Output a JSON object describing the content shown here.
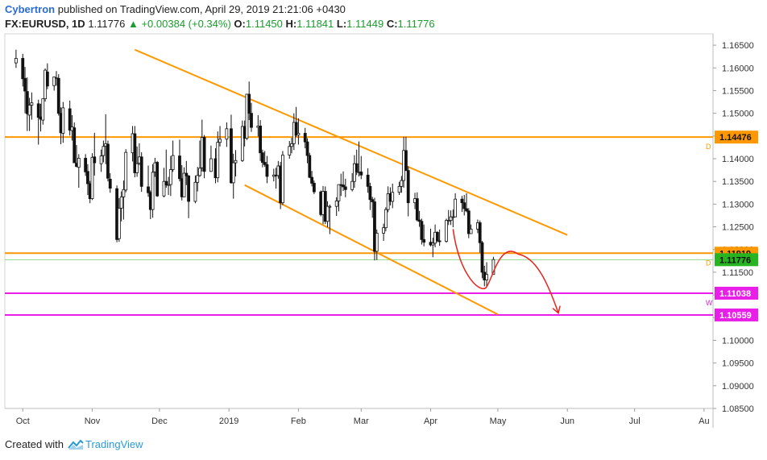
{
  "header": {
    "author": "Cybertron",
    "published": "published on TradingView.com, April 29, 2019 21:21:06 +0430",
    "symbol": "FX:EURUSD, 1D",
    "last": "1.11776",
    "change": "+0.00384 (+0.34%)",
    "o_label": "O:",
    "o_val": "1.11450",
    "h_label": "H:",
    "h_val": "1.11841",
    "l_label": "L:",
    "l_val": "1.11449",
    "c_label": "C:",
    "c_val": "1.11776"
  },
  "footer": {
    "created": "Created with",
    "brand": "TradingView"
  },
  "colors": {
    "orange": "#ff9800",
    "magenta": "#e91ee8",
    "red": "#e8241c",
    "green": "#26b520",
    "candle": "#111111"
  },
  "chart_data": {
    "type": "candlestick",
    "symbol": "EURUSD",
    "timeframe": "1D",
    "xlabels": [
      "Oct",
      "Nov",
      "Dec",
      "2019",
      "Feb",
      "Mar",
      "Apr",
      "May",
      "Jun",
      "Jul",
      "Au"
    ],
    "ylim": [
      1.085,
      1.1675
    ],
    "yticks": [
      "1.16500",
      "1.16000",
      "1.15500",
      "1.15000",
      "1.14500",
      "1.14000",
      "1.13500",
      "1.13000",
      "1.12500",
      "1.12000",
      "1.11500",
      "1.11000",
      "1.10500",
      "1.10000",
      "1.09500",
      "1.09000",
      "1.08500"
    ],
    "price_labels": [
      {
        "label": "1.14476",
        "value": 1.14476,
        "color": "#ff9800",
        "marker": "D"
      },
      {
        "label": "1.11919",
        "value": 1.11919,
        "color": "#ff9800",
        "marker": "D"
      },
      {
        "label": "1.11776",
        "value": 1.11776,
        "color": "#26b520",
        "marker": ""
      },
      {
        "label": "1.11038",
        "value": 1.11038,
        "color": "#e91ee8",
        "marker": "W"
      },
      {
        "label": "1.10559",
        "value": 1.10559,
        "color": "#e91ee8",
        "marker": ""
      }
    ],
    "horizontal_levels": [
      {
        "value": 1.14476,
        "color": "#ff9800"
      },
      {
        "value": 1.11919,
        "color": "#ff9800"
      },
      {
        "value": 1.11776,
        "color": "#26b520"
      },
      {
        "value": 1.11038,
        "color": "#e91ee8"
      },
      {
        "value": 1.10559,
        "color": "#e91ee8"
      }
    ],
    "trendlines": [
      {
        "start": "2018-11-20",
        "end": "2019-06-01",
        "y1": 1.164,
        "y2": 1.1232,
        "color": "#ff9800"
      },
      {
        "start": "2019-01-08",
        "end": "2019-05-01",
        "y1": 1.1342,
        "y2": 1.1057,
        "color": "#ff9800"
      }
    ],
    "projection": {
      "color": "#e8241c",
      "points": [
        [
          "2019-04-11",
          1.1245
        ],
        [
          "2019-04-26",
          1.1118
        ],
        [
          "2019-05-10",
          1.119
        ],
        [
          "2019-05-28",
          1.106
        ]
      ]
    },
    "candles": [
      [
        "2018-09-28",
        1.1611,
        1.164,
        1.16,
        1.1621
      ],
      [
        "2018-10-01",
        1.1621,
        1.1631,
        1.1559,
        1.1576
      ],
      [
        "2018-10-02",
        1.1577,
        1.1602,
        1.15,
        1.1549
      ],
      [
        "2018-10-03",
        1.1548,
        1.1579,
        1.1461,
        1.1499
      ],
      [
        "2018-10-04",
        1.1496,
        1.1534,
        1.1461,
        1.1518
      ],
      [
        "2018-10-05",
        1.1518,
        1.1546,
        1.1486,
        1.1523
      ],
      [
        "2018-10-08",
        1.1521,
        1.153,
        1.1431,
        1.1491
      ],
      [
        "2018-10-09",
        1.1492,
        1.1521,
        1.146,
        1.1487
      ],
      [
        "2018-10-10",
        1.1485,
        1.1532,
        1.1475,
        1.1532
      ],
      [
        "2018-10-11",
        1.1532,
        1.1599,
        1.1526,
        1.1595
      ],
      [
        "2018-10-12",
        1.1591,
        1.161,
        1.1553,
        1.156
      ],
      [
        "2018-10-15",
        1.1561,
        1.1581,
        1.155,
        1.158
      ],
      [
        "2018-10-16",
        1.1578,
        1.1593,
        1.1561,
        1.1578
      ],
      [
        "2018-10-17",
        1.1577,
        1.1586,
        1.1495,
        1.15
      ],
      [
        "2018-10-18",
        1.15,
        1.1513,
        1.1432,
        1.1457
      ],
      [
        "2018-10-19",
        1.1456,
        1.1525,
        1.1435,
        1.1512
      ],
      [
        "2018-10-22",
        1.151,
        1.1528,
        1.1451,
        1.1463
      ],
      [
        "2018-10-23",
        1.1462,
        1.1496,
        1.144,
        1.147
      ],
      [
        "2018-10-24",
        1.1468,
        1.148,
        1.1391,
        1.1391
      ],
      [
        "2018-10-25",
        1.139,
        1.143,
        1.1381,
        1.1383
      ],
      [
        "2018-10-26",
        1.1381,
        1.141,
        1.1336,
        1.1401
      ],
      [
        "2018-10-29",
        1.1401,
        1.141,
        1.1362,
        1.1371
      ],
      [
        "2018-10-30",
        1.1372,
        1.1388,
        1.132,
        1.1345
      ],
      [
        "2018-10-31",
        1.1345,
        1.1351,
        1.1302,
        1.1312
      ],
      [
        "2018-11-01",
        1.1312,
        1.1412,
        1.1309,
        1.1403
      ],
      [
        "2018-11-02",
        1.1404,
        1.1457,
        1.1363,
        1.1391
      ],
      [
        "2018-11-05",
        1.1389,
        1.142,
        1.1371,
        1.1406
      ],
      [
        "2018-11-06",
        1.1407,
        1.144,
        1.1392,
        1.1427
      ],
      [
        "2018-11-07",
        1.1428,
        1.1498,
        1.1388,
        1.1433
      ],
      [
        "2018-11-08",
        1.1432,
        1.144,
        1.135,
        1.1357
      ],
      [
        "2018-11-09",
        1.1355,
        1.1368,
        1.1325,
        1.1335
      ],
      [
        "2018-11-12",
        1.1334,
        1.1341,
        1.1216,
        1.1222
      ],
      [
        "2018-11-13",
        1.1224,
        1.1313,
        1.1217,
        1.1291
      ],
      [
        "2018-11-14",
        1.1291,
        1.1328,
        1.1262,
        1.1316
      ],
      [
        "2018-11-15",
        1.1316,
        1.1352,
        1.1266,
        1.1332
      ],
      [
        "2018-11-16",
        1.1331,
        1.1421,
        1.1326,
        1.1414
      ],
      [
        "2018-11-19",
        1.1413,
        1.1472,
        1.1394,
        1.1455
      ],
      [
        "2018-11-20",
        1.1455,
        1.1472,
        1.1359,
        1.1369
      ],
      [
        "2018-11-21",
        1.1369,
        1.1427,
        1.136,
        1.1389
      ],
      [
        "2018-11-22",
        1.139,
        1.1434,
        1.1386,
        1.1404
      ],
      [
        "2018-11-23",
        1.1404,
        1.1414,
        1.1327,
        1.1339
      ],
      [
        "2018-11-26",
        1.1338,
        1.1385,
        1.1316,
        1.1325
      ],
      [
        "2018-11-27",
        1.1326,
        1.133,
        1.1267,
        1.1288
      ],
      [
        "2018-11-28",
        1.1288,
        1.1388,
        1.127,
        1.137
      ],
      [
        "2018-11-29",
        1.1371,
        1.1402,
        1.136,
        1.1391
      ],
      [
        "2018-11-30",
        1.1392,
        1.1395,
        1.1316,
        1.1318
      ],
      [
        "2018-12-03",
        1.1318,
        1.138,
        1.1315,
        1.135
      ],
      [
        "2018-12-04",
        1.135,
        1.142,
        1.1336,
        1.1342
      ],
      [
        "2018-12-05",
        1.1343,
        1.136,
        1.132,
        1.1343
      ],
      [
        "2018-12-06",
        1.1343,
        1.1406,
        1.1318,
        1.1376
      ],
      [
        "2018-12-07",
        1.1376,
        1.144,
        1.1371,
        1.1407
      ],
      [
        "2018-12-10",
        1.1406,
        1.1442,
        1.135,
        1.1356
      ],
      [
        "2018-12-11",
        1.1356,
        1.1386,
        1.1308,
        1.1316
      ],
      [
        "2018-12-12",
        1.1316,
        1.1381,
        1.1316,
        1.1368
      ],
      [
        "2018-12-13",
        1.1368,
        1.1395,
        1.1342,
        1.1362
      ],
      [
        "2018-12-14",
        1.1362,
        1.1364,
        1.1269,
        1.1306
      ],
      [
        "2018-12-17",
        1.1306,
        1.1363,
        1.1302,
        1.1348
      ],
      [
        "2018-12-18",
        1.1348,
        1.1382,
        1.1328,
        1.1363
      ],
      [
        "2018-12-19",
        1.1363,
        1.144,
        1.136,
        1.1379
      ],
      [
        "2018-12-20",
        1.138,
        1.1486,
        1.1372,
        1.1447
      ],
      [
        "2018-12-21",
        1.1447,
        1.1452,
        1.1357,
        1.1372
      ],
      [
        "2018-12-24",
        1.1372,
        1.1429,
        1.1371,
        1.14
      ],
      [
        "2018-12-26",
        1.14,
        1.1423,
        1.1346,
        1.1358
      ],
      [
        "2018-12-27",
        1.1358,
        1.146,
        1.1348,
        1.1436
      ],
      [
        "2018-12-28",
        1.1436,
        1.1472,
        1.1427,
        1.1443
      ],
      [
        "2018-12-31",
        1.1443,
        1.148,
        1.1426,
        1.1466
      ],
      [
        "2019-01-02",
        1.1466,
        1.1497,
        1.1345,
        1.1347
      ],
      [
        "2019-01-03",
        1.1347,
        1.1411,
        1.1312,
        1.1391
      ],
      [
        "2019-01-04",
        1.1391,
        1.1419,
        1.1361,
        1.1396
      ],
      [
        "2019-01-07",
        1.1396,
        1.1484,
        1.1393,
        1.1471
      ],
      [
        "2019-01-08",
        1.1471,
        1.1484,
        1.1427,
        1.1445
      ],
      [
        "2019-01-09",
        1.1445,
        1.1543,
        1.1441,
        1.1542
      ],
      [
        "2019-01-10",
        1.1542,
        1.157,
        1.1485,
        1.15
      ],
      [
        "2019-01-11",
        1.15,
        1.1523,
        1.1459,
        1.1469
      ],
      [
        "2019-01-14",
        1.1469,
        1.1496,
        1.1449,
        1.1472
      ],
      [
        "2019-01-15",
        1.1472,
        1.1485,
        1.1395,
        1.1413
      ],
      [
        "2019-01-16",
        1.1413,
        1.142,
        1.1381,
        1.1392
      ],
      [
        "2019-01-17",
        1.1392,
        1.1417,
        1.1382,
        1.1387
      ],
      [
        "2019-01-18",
        1.1387,
        1.1406,
        1.1346,
        1.1361
      ],
      [
        "2019-01-21",
        1.1361,
        1.1378,
        1.135,
        1.1364
      ],
      [
        "2019-01-22",
        1.1364,
        1.138,
        1.1334,
        1.1363
      ],
      [
        "2019-01-23",
        1.1363,
        1.1395,
        1.1356,
        1.1384
      ],
      [
        "2019-01-24",
        1.1384,
        1.1393,
        1.1289,
        1.1303
      ],
      [
        "2019-01-25",
        1.1303,
        1.1417,
        1.1298,
        1.1408
      ],
      [
        "2019-01-28",
        1.1408,
        1.1439,
        1.14,
        1.1427
      ],
      [
        "2019-01-29",
        1.1427,
        1.1446,
        1.1412,
        1.1433
      ],
      [
        "2019-01-30",
        1.1433,
        1.15,
        1.1419,
        1.148
      ],
      [
        "2019-01-31",
        1.148,
        1.1514,
        1.1448,
        1.1452
      ],
      [
        "2019-02-01",
        1.1452,
        1.1489,
        1.1431,
        1.1456
      ],
      [
        "2019-02-04",
        1.1456,
        1.1468,
        1.1423,
        1.1437
      ],
      [
        "2019-02-05",
        1.1437,
        1.1445,
        1.139,
        1.1407
      ],
      [
        "2019-02-06",
        1.1407,
        1.1413,
        1.1357,
        1.1359
      ],
      [
        "2019-02-07",
        1.1359,
        1.1373,
        1.1339,
        1.1346
      ],
      [
        "2019-02-08",
        1.1346,
        1.1352,
        1.1322,
        1.1327
      ],
      [
        "2019-02-11",
        1.1327,
        1.133,
        1.1273,
        1.1277
      ],
      [
        "2019-02-12",
        1.1277,
        1.134,
        1.1256,
        1.1328
      ],
      [
        "2019-02-13",
        1.1328,
        1.1339,
        1.1256,
        1.1262
      ],
      [
        "2019-02-14",
        1.1262,
        1.1306,
        1.1249,
        1.1295
      ],
      [
        "2019-02-15",
        1.1295,
        1.1299,
        1.1234,
        1.1295
      ],
      [
        "2019-02-18",
        1.1295,
        1.1315,
        1.1274,
        1.1307
      ],
      [
        "2019-02-19",
        1.1307,
        1.1339,
        1.1284,
        1.1343
      ],
      [
        "2019-02-20",
        1.1343,
        1.1367,
        1.1318,
        1.1342
      ],
      [
        "2019-02-21",
        1.1342,
        1.1372,
        1.1329,
        1.1338
      ],
      [
        "2019-02-22",
        1.1338,
        1.1356,
        1.1315,
        1.1332
      ],
      [
        "2019-02-25",
        1.1332,
        1.1368,
        1.1328,
        1.135
      ],
      [
        "2019-02-26",
        1.135,
        1.1408,
        1.1336,
        1.1389
      ],
      [
        "2019-02-27",
        1.1389,
        1.142,
        1.1364,
        1.1371
      ],
      [
        "2019-02-28",
        1.1371,
        1.1438,
        1.1361,
        1.1371
      ],
      [
        "2019-03-01",
        1.1371,
        1.1406,
        1.1355,
        1.1364
      ],
      [
        "2019-03-04",
        1.1364,
        1.1379,
        1.1325,
        1.1339
      ],
      [
        "2019-03-05",
        1.1339,
        1.1347,
        1.1287,
        1.131
      ],
      [
        "2019-03-06",
        1.131,
        1.1316,
        1.127,
        1.1305
      ],
      [
        "2019-03-07",
        1.1305,
        1.1314,
        1.1176,
        1.1196
      ],
      [
        "2019-03-08",
        1.1196,
        1.1244,
        1.1177,
        1.1236
      ],
      [
        "2019-03-11",
        1.1236,
        1.1257,
        1.1219,
        1.1248
      ],
      [
        "2019-03-12",
        1.1248,
        1.1293,
        1.124,
        1.1288
      ],
      [
        "2019-03-13",
        1.1288,
        1.1339,
        1.1282,
        1.1323
      ],
      [
        "2019-03-14",
        1.1323,
        1.1337,
        1.1297,
        1.1306
      ],
      [
        "2019-03-15",
        1.1306,
        1.1345,
        1.1291,
        1.1326
      ],
      [
        "2019-03-18",
        1.1326,
        1.1349,
        1.132,
        1.1339
      ],
      [
        "2019-03-19",
        1.1339,
        1.1362,
        1.1325,
        1.1352
      ],
      [
        "2019-03-20",
        1.1352,
        1.1448,
        1.1336,
        1.1418
      ],
      [
        "2019-03-21",
        1.1418,
        1.1448,
        1.1373,
        1.1374
      ],
      [
        "2019-03-22",
        1.1374,
        1.1383,
        1.1273,
        1.1303
      ],
      [
        "2019-03-25",
        1.1303,
        1.1325,
        1.1289,
        1.1312
      ],
      [
        "2019-03-26",
        1.1312,
        1.1326,
        1.1262,
        1.1265
      ],
      [
        "2019-03-27",
        1.1265,
        1.1285,
        1.125,
        1.1262
      ],
      [
        "2019-03-28",
        1.1262,
        1.1268,
        1.1211,
        1.1222
      ],
      [
        "2019-03-29",
        1.1222,
        1.1255,
        1.1207,
        1.1216
      ],
      [
        "2019-04-01",
        1.1216,
        1.1246,
        1.1207,
        1.121
      ],
      [
        "2019-04-02",
        1.121,
        1.1226,
        1.1183,
        1.1214
      ],
      [
        "2019-04-03",
        1.1214,
        1.1255,
        1.1205,
        1.1238
      ],
      [
        "2019-04-04",
        1.1238,
        1.124,
        1.1216,
        1.1219
      ],
      [
        "2019-04-05",
        1.1219,
        1.1244,
        1.1208,
        1.1218
      ],
      [
        "2019-04-08",
        1.1218,
        1.1268,
        1.1215,
        1.1264
      ],
      [
        "2019-04-09",
        1.1264,
        1.1287,
        1.1254,
        1.1264
      ],
      [
        "2019-04-10",
        1.1264,
        1.1286,
        1.1254,
        1.1272
      ],
      [
        "2019-04-11",
        1.1272,
        1.1288,
        1.1249,
        1.1272
      ],
      [
        "2019-04-12",
        1.1272,
        1.1324,
        1.1271,
        1.1311
      ],
      [
        "2019-04-15",
        1.1311,
        1.1318,
        1.1283,
        1.1303
      ],
      [
        "2019-04-16",
        1.1303,
        1.132,
        1.1275,
        1.129
      ],
      [
        "2019-04-17",
        1.129,
        1.1324,
        1.1282,
        1.1285
      ],
      [
        "2019-04-18",
        1.1285,
        1.1291,
        1.1225,
        1.1235
      ],
      [
        "2019-04-19",
        1.1235,
        1.1255,
        1.1235,
        1.1245
      ],
      [
        "2019-04-22",
        1.1245,
        1.1266,
        1.1236,
        1.1259
      ],
      [
        "2019-04-23",
        1.1259,
        1.1264,
        1.1193,
        1.1215
      ],
      [
        "2019-04-24",
        1.1215,
        1.1219,
        1.1137,
        1.115
      ],
      [
        "2019-04-25",
        1.115,
        1.1164,
        1.1119,
        1.1133
      ],
      [
        "2019-04-26",
        1.1133,
        1.1172,
        1.1117,
        1.1145
      ],
      [
        "2019-04-29",
        1.1145,
        1.1184,
        1.1145,
        1.1178
      ]
    ]
  }
}
